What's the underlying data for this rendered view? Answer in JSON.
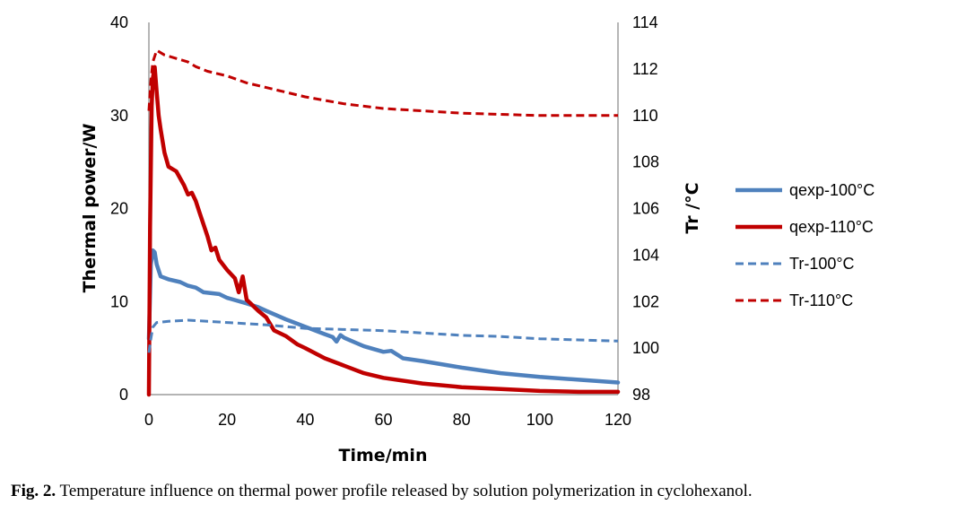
{
  "chart_data": {
    "type": "line",
    "xlabel": "Time/min",
    "ylabel": "Thermal power/W",
    "y2label": "Tr /°C",
    "xlim": [
      0,
      120
    ],
    "ylim": [
      0,
      40
    ],
    "y2lim": [
      98,
      114
    ],
    "x_ticks": [
      "0",
      "20",
      "40",
      "60",
      "80",
      "100",
      "120"
    ],
    "y_ticks": [
      "0",
      "10",
      "20",
      "30",
      "40"
    ],
    "y2_ticks": [
      "98",
      "100",
      "102",
      "104",
      "106",
      "108",
      "110",
      "112",
      "114"
    ],
    "grid": false,
    "legend_position": "right",
    "series": [
      {
        "name": "qexp-100°C",
        "axis": "left",
        "style": "solid",
        "color": "#4f81bd",
        "points": [
          [
            0,
            6
          ],
          [
            0.5,
            14
          ],
          [
            1,
            15.5
          ],
          [
            1.5,
            15.3
          ],
          [
            2,
            14
          ],
          [
            3,
            12.7
          ],
          [
            5,
            12.4
          ],
          [
            8,
            12.1
          ],
          [
            10,
            11.7
          ],
          [
            12,
            11.5
          ],
          [
            14,
            11
          ],
          [
            18,
            10.8
          ],
          [
            20,
            10.4
          ],
          [
            25,
            9.8
          ],
          [
            28,
            9.4
          ],
          [
            30,
            9
          ],
          [
            35,
            8.1
          ],
          [
            40,
            7.3
          ],
          [
            45,
            6.5
          ],
          [
            47,
            6.2
          ],
          [
            48,
            5.7
          ],
          [
            49,
            6.4
          ],
          [
            50,
            6.1
          ],
          [
            55,
            5.2
          ],
          [
            60,
            4.6
          ],
          [
            62,
            4.7
          ],
          [
            65,
            3.9
          ],
          [
            70,
            3.6
          ],
          [
            80,
            2.9
          ],
          [
            90,
            2.3
          ],
          [
            100,
            1.9
          ],
          [
            110,
            1.6
          ],
          [
            120,
            1.3
          ]
        ]
      },
      {
        "name": "qexp-110°C",
        "axis": "left",
        "style": "solid",
        "color": "#c00000",
        "points": [
          [
            0,
            0
          ],
          [
            0.3,
            18
          ],
          [
            0.7,
            31
          ],
          [
            1,
            34
          ],
          [
            1.5,
            35.2
          ],
          [
            2,
            32.5
          ],
          [
            2.5,
            30
          ],
          [
            3,
            28.5
          ],
          [
            4,
            26
          ],
          [
            5,
            24.5
          ],
          [
            7,
            24
          ],
          [
            9,
            22.5
          ],
          [
            10,
            21.5
          ],
          [
            11,
            21.7
          ],
          [
            12,
            20.8
          ],
          [
            13,
            19.5
          ],
          [
            15,
            17
          ],
          [
            16,
            15.5
          ],
          [
            17,
            15.8
          ],
          [
            18,
            14.5
          ],
          [
            20,
            13.4
          ],
          [
            22,
            12.5
          ],
          [
            23,
            11
          ],
          [
            24,
            12.7
          ],
          [
            25,
            10.2
          ],
          [
            26,
            9.8
          ],
          [
            28,
            9
          ],
          [
            30,
            8.3
          ],
          [
            32,
            6.9
          ],
          [
            35,
            6.3
          ],
          [
            38,
            5.4
          ],
          [
            40,
            5
          ],
          [
            45,
            3.9
          ],
          [
            50,
            3.1
          ],
          [
            55,
            2.3
          ],
          [
            60,
            1.8
          ],
          [
            70,
            1.2
          ],
          [
            80,
            0.8
          ],
          [
            90,
            0.6
          ],
          [
            100,
            0.4
          ],
          [
            110,
            0.3
          ],
          [
            120,
            0.3
          ]
        ]
      },
      {
        "name": "Tr-100°C",
        "axis": "right",
        "style": "dashed",
        "color": "#4f81bd",
        "points": [
          [
            0,
            99.8
          ],
          [
            0.5,
            100.4
          ],
          [
            1,
            100.9
          ],
          [
            2,
            101.1
          ],
          [
            5,
            101.15
          ],
          [
            10,
            101.2
          ],
          [
            15,
            101.15
          ],
          [
            20,
            101.1
          ],
          [
            30,
            101
          ],
          [
            40,
            100.85
          ],
          [
            50,
            100.8
          ],
          [
            60,
            100.75
          ],
          [
            70,
            100.65
          ],
          [
            80,
            100.55
          ],
          [
            90,
            100.5
          ],
          [
            100,
            100.4
          ],
          [
            110,
            100.35
          ],
          [
            120,
            100.3
          ]
        ]
      },
      {
        "name": "Tr-110°C",
        "axis": "right",
        "style": "dashed",
        "color": "#c00000",
        "points": [
          [
            0,
            110.2
          ],
          [
            0.5,
            111.5
          ],
          [
            1,
            112.3
          ],
          [
            2,
            112.8
          ],
          [
            4,
            112.6
          ],
          [
            8,
            112.4
          ],
          [
            10,
            112.3
          ],
          [
            12,
            112.1
          ],
          [
            15,
            111.9
          ],
          [
            20,
            111.7
          ],
          [
            25,
            111.4
          ],
          [
            30,
            111.2
          ],
          [
            40,
            110.8
          ],
          [
            50,
            110.5
          ],
          [
            60,
            110.3
          ],
          [
            70,
            110.2
          ],
          [
            80,
            110.1
          ],
          [
            90,
            110.05
          ],
          [
            100,
            110
          ],
          [
            110,
            110
          ],
          [
            120,
            110
          ]
        ]
      }
    ]
  },
  "caption": {
    "label": "Fig. 2.",
    "text": " Temperature influence on thermal power profile released by solution polymerization in cyclohexanol."
  }
}
